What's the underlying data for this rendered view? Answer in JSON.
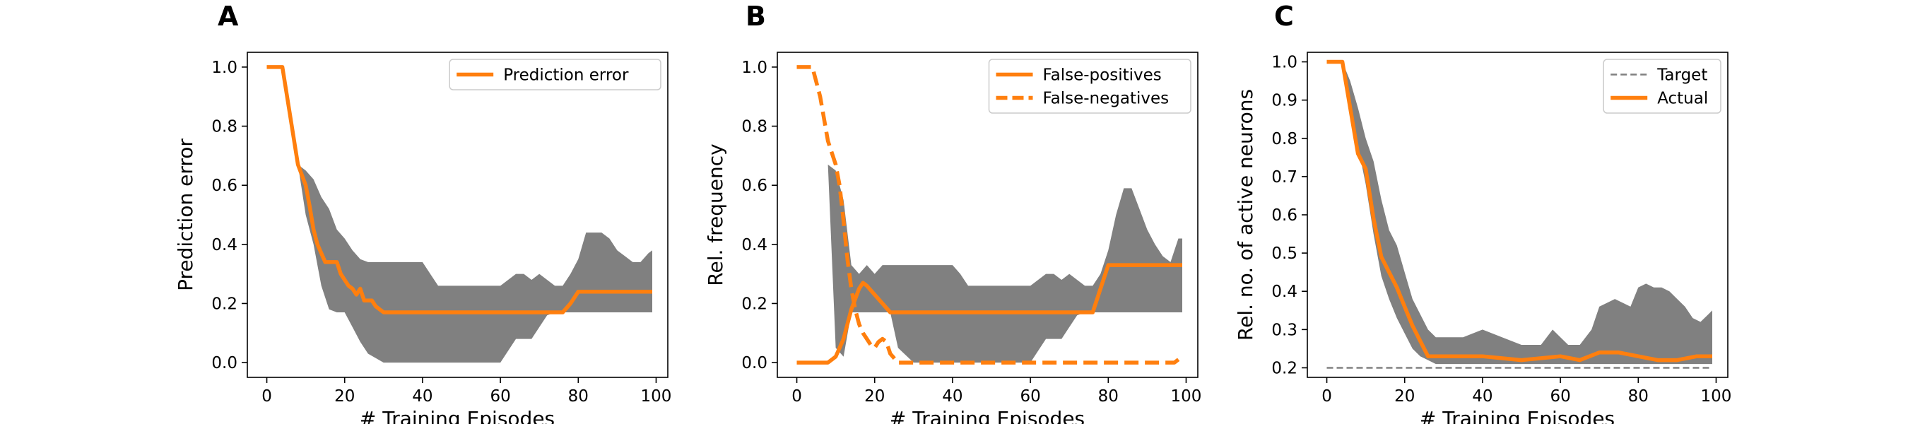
{
  "colors": {
    "orange": "#ff7f0e",
    "band": "#808080",
    "target": "#808080",
    "axis": "#000000"
  },
  "chart_data": [
    {
      "type": "line",
      "panel_label": "A",
      "xlabel": "# Training Episodes",
      "ylabel": "Prediction error",
      "xlim": [
        -5,
        103
      ],
      "ylim": [
        -0.05,
        1.05
      ],
      "xticks": [
        0,
        20,
        40,
        60,
        80,
        100
      ],
      "yticks": [
        0.0,
        0.2,
        0.4,
        0.6,
        0.8,
        1.0
      ],
      "xtick_labels": [
        "0",
        "20",
        "40",
        "60",
        "80",
        "100"
      ],
      "ytick_labels": [
        "0.0",
        "0.2",
        "0.4",
        "0.6",
        "0.8",
        "1.0"
      ],
      "grid": false,
      "legend_position": "top-right",
      "series": [
        {
          "name": "Prediction error",
          "style": "solid",
          "x": [
            0,
            4,
            8,
            10,
            11,
            12,
            13,
            14,
            15,
            16,
            17,
            18,
            19,
            20,
            21,
            22,
            23,
            24,
            25,
            26,
            27,
            28,
            29,
            30,
            50,
            60,
            76,
            78,
            80,
            99
          ],
          "y": [
            1.0,
            1.0,
            0.67,
            0.6,
            0.53,
            0.45,
            0.4,
            0.37,
            0.34,
            0.34,
            0.34,
            0.34,
            0.3,
            0.28,
            0.26,
            0.25,
            0.23,
            0.25,
            0.21,
            0.21,
            0.21,
            0.19,
            0.18,
            0.17,
            0.17,
            0.17,
            0.17,
            0.2,
            0.24,
            0.24
          ]
        }
      ],
      "band": {
        "x": [
          8,
          10,
          12,
          14,
          16,
          18,
          20,
          22,
          24,
          26,
          30,
          35,
          40,
          42,
          44,
          46,
          50,
          55,
          60,
          62,
          64,
          66,
          68,
          70,
          72,
          74,
          76,
          78,
          80,
          82,
          84,
          86,
          88,
          90,
          92,
          94,
          96,
          98,
          99
        ],
        "upper": [
          0.67,
          0.65,
          0.62,
          0.56,
          0.52,
          0.45,
          0.42,
          0.38,
          0.35,
          0.34,
          0.34,
          0.34,
          0.34,
          0.3,
          0.26,
          0.26,
          0.26,
          0.26,
          0.26,
          0.28,
          0.3,
          0.3,
          0.28,
          0.3,
          0.28,
          0.26,
          0.26,
          0.3,
          0.35,
          0.44,
          0.44,
          0.44,
          0.42,
          0.38,
          0.36,
          0.34,
          0.34,
          0.37,
          0.38
        ],
        "lower": [
          0.67,
          0.5,
          0.4,
          0.26,
          0.18,
          0.17,
          0.17,
          0.12,
          0.07,
          0.03,
          0.0,
          0.0,
          0.0,
          0.0,
          0.0,
          0.0,
          0.0,
          0.0,
          0.0,
          0.04,
          0.08,
          0.08,
          0.08,
          0.12,
          0.16,
          0.17,
          0.17,
          0.17,
          0.17,
          0.17,
          0.17,
          0.17,
          0.17,
          0.17,
          0.17,
          0.17,
          0.17,
          0.17,
          0.17
        ]
      }
    },
    {
      "type": "line",
      "panel_label": "B",
      "xlabel": "# Training Episodes",
      "ylabel": "Rel. frequency",
      "xlim": [
        -5,
        103
      ],
      "ylim": [
        -0.05,
        1.05
      ],
      "xticks": [
        0,
        20,
        40,
        60,
        80,
        100
      ],
      "yticks": [
        0.0,
        0.2,
        0.4,
        0.6,
        0.8,
        1.0
      ],
      "xtick_labels": [
        "0",
        "20",
        "40",
        "60",
        "80",
        "100"
      ],
      "ytick_labels": [
        "0.0",
        "0.2",
        "0.4",
        "0.6",
        "0.8",
        "1.0"
      ],
      "grid": false,
      "legend_position": "top-right",
      "series": [
        {
          "name": "False-positives",
          "style": "solid",
          "x": [
            0,
            8,
            10,
            12,
            14,
            16,
            17,
            18,
            20,
            22,
            24,
            26,
            40,
            60,
            76,
            78,
            80,
            99
          ],
          "y": [
            0.0,
            0.0,
            0.02,
            0.08,
            0.18,
            0.25,
            0.27,
            0.26,
            0.23,
            0.2,
            0.17,
            0.17,
            0.17,
            0.17,
            0.17,
            0.25,
            0.33,
            0.33
          ]
        },
        {
          "name": "False-negatives",
          "style": "dashed",
          "x": [
            0,
            4,
            6,
            8,
            10,
            11,
            12,
            13,
            14,
            15,
            16,
            17,
            18,
            19,
            20,
            21,
            22,
            23,
            24,
            26,
            30,
            50,
            80,
            97,
            99
          ],
          "y": [
            1.0,
            1.0,
            0.9,
            0.75,
            0.67,
            0.6,
            0.48,
            0.35,
            0.25,
            0.18,
            0.13,
            0.1,
            0.08,
            0.06,
            0.05,
            0.07,
            0.08,
            0.07,
            0.03,
            0.0,
            0.0,
            0.0,
            0.0,
            0.0,
            0.02
          ]
        }
      ],
      "band": {
        "x": [
          8,
          10,
          12,
          14,
          16,
          18,
          20,
          22,
          24,
          26,
          30,
          35,
          40,
          42,
          44,
          46,
          50,
          55,
          60,
          62,
          64,
          66,
          68,
          70,
          72,
          74,
          76,
          78,
          80,
          82,
          84,
          86,
          88,
          90,
          92,
          94,
          96,
          98,
          99
        ],
        "upper": [
          0.67,
          0.65,
          0.55,
          0.33,
          0.3,
          0.33,
          0.3,
          0.33,
          0.33,
          0.33,
          0.33,
          0.33,
          0.33,
          0.3,
          0.26,
          0.26,
          0.26,
          0.26,
          0.26,
          0.28,
          0.3,
          0.3,
          0.28,
          0.3,
          0.28,
          0.26,
          0.26,
          0.3,
          0.38,
          0.5,
          0.59,
          0.59,
          0.52,
          0.45,
          0.4,
          0.36,
          0.34,
          0.42,
          0.42
        ],
        "lower": [
          0.67,
          0.05,
          0.02,
          0.17,
          0.17,
          0.17,
          0.17,
          0.17,
          0.17,
          0.05,
          0.0,
          0.0,
          0.0,
          0.0,
          0.0,
          0.0,
          0.0,
          0.0,
          0.0,
          0.04,
          0.08,
          0.08,
          0.08,
          0.12,
          0.16,
          0.17,
          0.17,
          0.17,
          0.17,
          0.17,
          0.17,
          0.17,
          0.17,
          0.17,
          0.17,
          0.17,
          0.17,
          0.17,
          0.17
        ]
      }
    },
    {
      "type": "line",
      "panel_label": "C",
      "xlabel": "# Training Episodes",
      "ylabel": "Rel. no. of active neurons",
      "xlim": [
        -5,
        103
      ],
      "ylim": [
        0.175,
        1.025
      ],
      "xticks": [
        0,
        20,
        40,
        60,
        80,
        100
      ],
      "yticks": [
        0.2,
        0.3,
        0.4,
        0.5,
        0.6,
        0.7,
        0.8,
        0.9,
        1.0
      ],
      "xtick_labels": [
        "0",
        "20",
        "40",
        "60",
        "80",
        "100"
      ],
      "ytick_labels": [
        "0.2",
        "0.3",
        "0.4",
        "0.5",
        "0.6",
        "0.7",
        "0.8",
        "0.9",
        "1.0"
      ],
      "grid": false,
      "legend_position": "top-right",
      "series": [
        {
          "name": "Target",
          "style": "dashed-thin",
          "x": [
            0,
            99
          ],
          "y": [
            0.2,
            0.2
          ]
        },
        {
          "name": "Actual",
          "style": "solid",
          "x": [
            0,
            4,
            6,
            8,
            10,
            12,
            14,
            16,
            18,
            20,
            22,
            24,
            25,
            26,
            28,
            30,
            40,
            50,
            60,
            65,
            70,
            75,
            80,
            85,
            90,
            95,
            99
          ],
          "y": [
            1.0,
            1.0,
            0.88,
            0.76,
            0.72,
            0.59,
            0.49,
            0.45,
            0.41,
            0.36,
            0.31,
            0.27,
            0.25,
            0.23,
            0.23,
            0.23,
            0.23,
            0.22,
            0.23,
            0.22,
            0.24,
            0.24,
            0.23,
            0.22,
            0.22,
            0.23,
            0.23
          ]
        }
      ],
      "band": {
        "x": [
          4,
          6,
          8,
          10,
          12,
          14,
          16,
          18,
          20,
          22,
          24,
          26,
          28,
          30,
          35,
          40,
          45,
          50,
          55,
          58,
          60,
          62,
          65,
          68,
          70,
          72,
          74,
          76,
          78,
          80,
          82,
          84,
          86,
          88,
          90,
          92,
          94,
          96,
          98,
          99
        ],
        "upper": [
          1.0,
          0.95,
          0.88,
          0.8,
          0.74,
          0.64,
          0.56,
          0.52,
          0.45,
          0.38,
          0.34,
          0.3,
          0.28,
          0.28,
          0.28,
          0.3,
          0.28,
          0.26,
          0.26,
          0.3,
          0.28,
          0.26,
          0.26,
          0.3,
          0.36,
          0.37,
          0.38,
          0.37,
          0.36,
          0.41,
          0.42,
          0.41,
          0.41,
          0.4,
          0.38,
          0.36,
          0.33,
          0.32,
          0.34,
          0.35
        ],
        "lower": [
          1.0,
          0.9,
          0.78,
          0.68,
          0.55,
          0.44,
          0.38,
          0.33,
          0.29,
          0.25,
          0.23,
          0.22,
          0.21,
          0.21,
          0.21,
          0.21,
          0.21,
          0.21,
          0.21,
          0.21,
          0.21,
          0.21,
          0.21,
          0.21,
          0.21,
          0.21,
          0.21,
          0.21,
          0.21,
          0.21,
          0.21,
          0.21,
          0.21,
          0.21,
          0.21,
          0.21,
          0.21,
          0.21,
          0.21,
          0.21
        ]
      }
    }
  ]
}
